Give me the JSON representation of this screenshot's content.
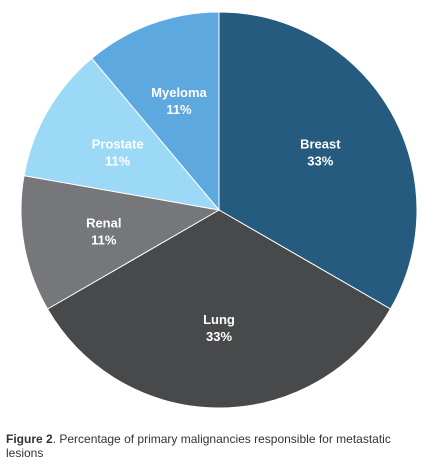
{
  "chart_data": {
    "type": "pie",
    "slices": [
      {
        "label": "Breast",
        "percent_label": "33%",
        "value": 33,
        "color": "#245b7e"
      },
      {
        "label": "Lung",
        "percent_label": "33%",
        "value": 33,
        "color": "#48494b"
      },
      {
        "label": "Renal",
        "percent_label": "11%",
        "value": 11,
        "color": "#76777a"
      },
      {
        "label": "Prostate",
        "percent_label": "11%",
        "value": 11,
        "color": "#9cd9f6"
      },
      {
        "label": "Myeloma",
        "percent_label": "11%",
        "value": 11,
        "color": "#5ea8e0"
      }
    ],
    "start": "12 o'clock",
    "direction": "clockwise"
  },
  "caption": {
    "lead": "Figure 2",
    "text": ". Percentage of primary malignancies responsible for metastatic lesions"
  }
}
